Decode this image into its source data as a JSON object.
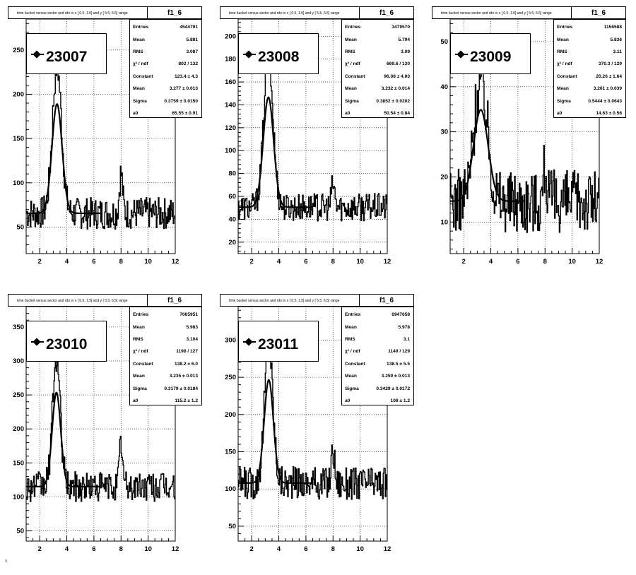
{
  "pads": [
    {
      "title": "time bucket versus sector and rdo in x [  0.5,  1.5] and y [  5.5,  6.5] range",
      "func": "f1_6",
      "legend": "23007",
      "stats": [
        {
          "label": "Entries",
          "value": "4544791"
        },
        {
          "label": "Mean",
          "value": "5.881"
        },
        {
          "label": "RMS",
          "value": "3.087"
        },
        {
          "label": "χ² / ndf",
          "value": "802 / 132"
        },
        {
          "label": "Constant",
          "value": "123.4 ± 4.3"
        },
        {
          "label": "Mean",
          "value": "3.277 ± 0.013"
        },
        {
          "label": "Sigma",
          "value": "0.3759 ± 0.0150"
        },
        {
          "label": "a0",
          "value": "65.55 ± 0.91"
        }
      ],
      "chart_data": {
        "type": "line",
        "x_range": [
          1,
          12
        ],
        "y_range": [
          20,
          285
        ],
        "x_ticks": [
          2,
          4,
          6,
          8,
          10,
          12
        ],
        "y_ticks": [
          50,
          100,
          150,
          200,
          250
        ],
        "fit": {
          "constant": 123.4,
          "mean": 3.277,
          "sigma": 0.3759,
          "a0": 65.55,
          "x_range": [
            1,
            6.5
          ]
        },
        "noise_amp": 18,
        "second_peak": {
          "x": 8.0,
          "height": 45
        },
        "grid": true
      }
    },
    {
      "title": "time bucket versus sector and rdo in x [  0.5,  1.5] and y [  5.5,  6.5] range",
      "func": "f1_6",
      "legend": "23008",
      "stats": [
        {
          "label": "Entries",
          "value": "3479570"
        },
        {
          "label": "Mean",
          "value": "5.794"
        },
        {
          "label": "RMS",
          "value": "3.09"
        },
        {
          "label": "χ² / ndf",
          "value": "669.6 / 130"
        },
        {
          "label": "Constant",
          "value": "96.08 ± 4.03"
        },
        {
          "label": "Mean",
          "value": "3.232 ± 0.014"
        },
        {
          "label": "Sigma",
          "value": "0.3852 ± 0.0202"
        },
        {
          "label": "a0",
          "value": "50.54 ± 0.84"
        }
      ],
      "chart_data": {
        "type": "line",
        "x_range": [
          1,
          12
        ],
        "y_range": [
          10,
          215
        ],
        "x_ticks": [
          2,
          4,
          6,
          8,
          10,
          12
        ],
        "y_ticks": [
          20,
          40,
          60,
          80,
          100,
          120,
          140,
          160,
          180,
          200
        ],
        "fit": {
          "constant": 96.08,
          "mean": 3.232,
          "sigma": 0.3852,
          "a0": 50.54,
          "x_range": [
            1,
            6.5
          ]
        },
        "noise_amp": 12,
        "second_peak": {
          "x": 8.0,
          "height": 20
        },
        "grid": true
      }
    },
    {
      "title": "time bucket versus sector and rdo in x [  0.5,  1.5] and y [  5.5,  6.5] range",
      "func": "f1_6",
      "legend": "23009",
      "stats": [
        {
          "label": "Entries",
          "value": "1156588"
        },
        {
          "label": "Mean",
          "value": "5.836"
        },
        {
          "label": "RMS",
          "value": "3.11"
        },
        {
          "label": "χ² / ndf",
          "value": "370.3 / 129"
        },
        {
          "label": "Constant",
          "value": "20.26 ± 1.64"
        },
        {
          "label": "Mean",
          "value": "3.261 ± 0.039"
        },
        {
          "label": "Sigma",
          "value": "0.5444 ± 0.0643"
        },
        {
          "label": "a0",
          "value": "14.63 ± 0.56"
        }
      ],
      "chart_data": {
        "type": "line",
        "x_range": [
          1,
          12
        ],
        "y_range": [
          3,
          55
        ],
        "x_ticks": [
          2,
          4,
          6,
          8,
          10,
          12
        ],
        "y_ticks": [
          10,
          20,
          30,
          40,
          50
        ],
        "fit": {
          "constant": 20.26,
          "mean": 3.261,
          "sigma": 0.5444,
          "a0": 14.63,
          "x_range": [
            1,
            6.5
          ]
        },
        "noise_amp": 7,
        "second_peak": {
          "x": 8.0,
          "height": 8
        },
        "grid": true
      }
    },
    {
      "title": "time bucket versus sector and rdo in x [  0.5,  1.5] and y [  5.5,  6.5] range",
      "func": "f1_6",
      "legend": "23010",
      "stats": [
        {
          "label": "Entries",
          "value": "7065951"
        },
        {
          "label": "Mean",
          "value": "5.983"
        },
        {
          "label": "RMS",
          "value": "3.104"
        },
        {
          "label": "χ² / ndf",
          "value": "1198 / 127"
        },
        {
          "label": "Constant",
          "value": "138.2 ± 6.0"
        },
        {
          "label": "Mean",
          "value": "3.235 ± 0.013"
        },
        {
          "label": "Sigma",
          "value": "0.3179 ± 0.0184"
        },
        {
          "label": "a0",
          "value": "115.2 ± 1.2"
        }
      ],
      "chart_data": {
        "type": "line",
        "x_range": [
          1,
          12
        ],
        "y_range": [
          35,
          380
        ],
        "x_ticks": [
          2,
          4,
          6,
          8,
          10,
          12
        ],
        "y_ticks": [
          50,
          100,
          150,
          200,
          250,
          300,
          350
        ],
        "fit": {
          "constant": 138.2,
          "mean": 3.235,
          "sigma": 0.3179,
          "a0": 115.2,
          "x_range": [
            1,
            6.5
          ]
        },
        "noise_amp": 22,
        "second_peak": {
          "x": 8.0,
          "height": 65
        },
        "grid": true
      }
    },
    {
      "title": "time bucket versus sector and rdo in x [  0.5,  1.5] and y [  5.5,  6.5] range",
      "func": "f1_6",
      "legend": "23011",
      "stats": [
        {
          "label": "Entries",
          "value": "6947658"
        },
        {
          "label": "Mean",
          "value": "5.978"
        },
        {
          "label": "RMS",
          "value": "3.1"
        },
        {
          "label": "χ² / ndf",
          "value": "1149 / 129"
        },
        {
          "label": "Constant",
          "value": "138.5 ± 5.5"
        },
        {
          "label": "Mean",
          "value": "3.259 ± 0.013"
        },
        {
          "label": "Sigma",
          "value": "0.3429 ± 0.0172"
        },
        {
          "label": "a0",
          "value": "108 ± 1.2"
        }
      ],
      "chart_data": {
        "type": "line",
        "x_range": [
          1,
          12
        ],
        "y_range": [
          30,
          345
        ],
        "x_ticks": [
          2,
          4,
          6,
          8,
          10,
          12
        ],
        "y_ticks": [
          50,
          100,
          150,
          200,
          250,
          300
        ],
        "fit": {
          "constant": 138.5,
          "mean": 3.259,
          "sigma": 0.3429,
          "a0": 108,
          "x_range": [
            1,
            6.5
          ]
        },
        "noise_amp": 22,
        "second_peak": {
          "x": 8.0,
          "height": 45
        },
        "grid": true
      }
    }
  ]
}
